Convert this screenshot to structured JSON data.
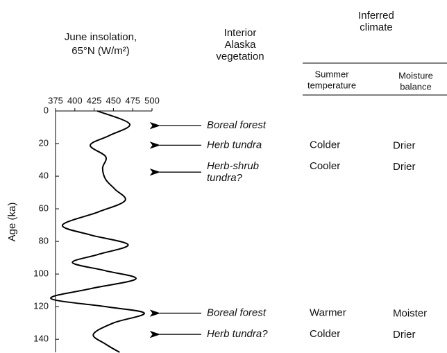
{
  "chart_data": {
    "type": "line",
    "x_label": [
      "June insolation,",
      "65°N (W/m²)"
    ],
    "y_label": "Age (ka)",
    "vegetation_header": [
      "Interior",
      "Alaska",
      "vegetation"
    ],
    "climate_header": [
      "Inferred",
      "climate"
    ],
    "temperature_header": [
      "Summer",
      "temperature"
    ],
    "moisture_header": [
      "Moisture",
      "balance"
    ],
    "x": [
      0,
      8,
      15,
      21,
      28,
      35,
      42,
      48,
      55,
      62,
      70,
      76,
      82,
      88,
      93,
      98,
      103,
      109,
      115,
      120,
      124,
      130,
      137,
      143,
      148
    ],
    "values": [
      429,
      471,
      445,
      420,
      440,
      436,
      440,
      452,
      465,
      430,
      384,
      420,
      469,
      430,
      397,
      440,
      479,
      420,
      369,
      440,
      490,
      450,
      424,
      440,
      458
    ],
    "color": "#000000",
    "xlim": [
      375,
      500
    ],
    "xticks": [
      375,
      400,
      425,
      450,
      475,
      500
    ],
    "ylim": [
      0,
      148
    ],
    "yticks": [
      0,
      20,
      40,
      60,
      80,
      100,
      120,
      140
    ],
    "annotations": [
      {
        "age": 9,
        "vegetation": [
          "Boreal forest"
        ],
        "temperature": null,
        "moisture": null
      },
      {
        "age": 21,
        "vegetation": [
          "Herb tundra"
        ],
        "temperature": "Colder",
        "moisture": "Drier"
      },
      {
        "age": 37.5,
        "vegetation": [
          "Herb-shrub",
          "tundra?"
        ],
        "temperature": "Cooler",
        "moisture": "Drier"
      },
      {
        "age": 124,
        "vegetation": [
          "Boreal forest"
        ],
        "temperature": "Warmer",
        "moisture": "Moister"
      },
      {
        "age": 137,
        "vegetation": [
          "Herb tundra?"
        ],
        "temperature": "Colder",
        "moisture": "Drier"
      }
    ]
  }
}
